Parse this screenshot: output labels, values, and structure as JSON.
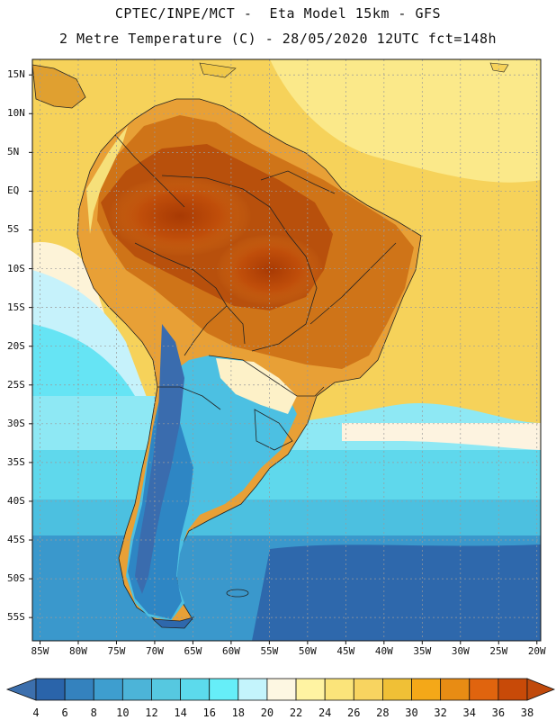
{
  "title": {
    "line1": "CPTEC/INPE/MCT -  Eta Model 15km - GFS",
    "line2": "2 Metre Temperature (C) - 28/05/2020 12UTC fct=148h"
  },
  "map": {
    "lon_range": [
      -86,
      -19.5
    ],
    "lat_range": [
      -58,
      17
    ],
    "lat_ticks": [
      {
        "value": 15,
        "label": "15N"
      },
      {
        "value": 10,
        "label": "10N"
      },
      {
        "value": 5,
        "label": "5N"
      },
      {
        "value": 0,
        "label": "EQ"
      },
      {
        "value": -5,
        "label": "5S"
      },
      {
        "value": -10,
        "label": "10S"
      },
      {
        "value": -15,
        "label": "15S"
      },
      {
        "value": -20,
        "label": "20S"
      },
      {
        "value": -25,
        "label": "25S"
      },
      {
        "value": -30,
        "label": "30S"
      },
      {
        "value": -35,
        "label": "35S"
      },
      {
        "value": -40,
        "label": "40S"
      },
      {
        "value": -45,
        "label": "45S"
      },
      {
        "value": -50,
        "label": "50S"
      },
      {
        "value": -55,
        "label": "55S"
      }
    ],
    "lon_ticks": [
      {
        "value": -85,
        "label": "85W"
      },
      {
        "value": -80,
        "label": "80W"
      },
      {
        "value": -75,
        "label": "75W"
      },
      {
        "value": -70,
        "label": "70W"
      },
      {
        "value": -65,
        "label": "65W"
      },
      {
        "value": -60,
        "label": "60W"
      },
      {
        "value": -55,
        "label": "55W"
      },
      {
        "value": -50,
        "label": "50W"
      },
      {
        "value": -45,
        "label": "45W"
      },
      {
        "value": -40,
        "label": "40W"
      },
      {
        "value": -35,
        "label": "35W"
      },
      {
        "value": -30,
        "label": "30W"
      },
      {
        "value": -25,
        "label": "25W"
      },
      {
        "value": -20,
        "label": "20W"
      }
    ]
  },
  "colorbar": {
    "labels": [
      "4",
      "6",
      "8",
      "10",
      "12",
      "14",
      "16",
      "18",
      "20",
      "22",
      "24",
      "26",
      "28",
      "30",
      "32",
      "34",
      "36",
      "38"
    ],
    "below_color": "#3c6fad",
    "above_color": "#c04a0c",
    "colors": [
      "#2a64aa",
      "#3482be",
      "#3e9ecf",
      "#4cb4d8",
      "#56c8e0",
      "#5cdaec",
      "#66eef8",
      "#c4f4fc",
      "#fdf7e2",
      "#fff3a2",
      "#fbe47a",
      "#f8d460",
      "#f0c036",
      "#f4a818",
      "#e88c14",
      "#e0640e",
      "#c84a08"
    ]
  }
}
